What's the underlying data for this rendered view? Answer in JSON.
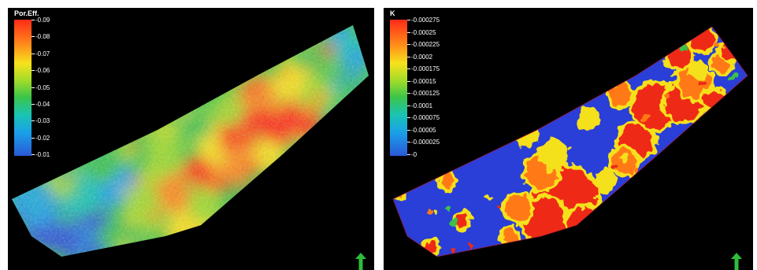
{
  "panels": [
    {
      "legend_title": "Por.Eff.",
      "ticks": [
        "0.09",
        "0.08",
        "0.07",
        "0.06",
        "0.05",
        "0.04",
        "0.03",
        "0.02",
        "0.01"
      ],
      "colors": [
        "#ff2a18",
        "#ff8a1a",
        "#f7e21c",
        "#9fdc2a",
        "#3bc44a",
        "#19c4b4",
        "#1aa0e8",
        "#2a58d8"
      ]
    },
    {
      "legend_title": "K",
      "ticks": [
        "0.000275",
        "0.00025",
        "0.000225",
        "0.0002",
        "0.000175",
        "0.00015",
        "0.000125",
        "0.0001",
        "0.000075",
        "0.00005",
        "0.000025",
        "0"
      ],
      "colors": [
        "#2a3ed8",
        "#ee2a18",
        "#ff7a18",
        "#f5e01e",
        "#3ac24a"
      ]
    }
  ],
  "north_arrow_color": "#2ebd3a"
}
